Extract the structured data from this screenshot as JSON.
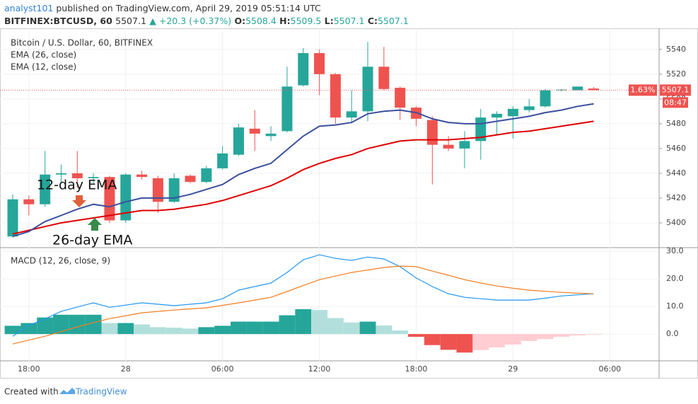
{
  "chart_data": {
    "type": "candlestick",
    "author": "analyst101",
    "published": "published on TradingView.com, April 29, 2019 05:51:14 UTC",
    "symbol": "BITFINEX:BTCUSD, 60",
    "quote": [
      "5507.1",
      "▲ +20.3 (+0.37%)"
    ],
    "ohlc": [
      {
        "label": "O:",
        "value": "5508.4"
      },
      {
        "label": "H:",
        "value": "5509.5"
      },
      {
        "label": "L:",
        "value": "5507.1"
      },
      {
        "label": "C:",
        "value": "5507.1"
      }
    ],
    "title": "Bitcoin / U.S. Dollar, 60, BITFINEX",
    "up_color": "#26a69a",
    "down_color": "#ef5350",
    "open": [
      5389,
      5419,
      5415,
      5439,
      5440,
      5436,
      5437,
      5402,
      5439,
      5436,
      5417,
      5438,
      5433,
      5444,
      5455,
      5476,
      5470,
      5474,
      5511,
      5537,
      5520,
      5485,
      5490,
      5526,
      5509,
      5493,
      5483,
      5463,
      5460,
      5466,
      5485,
      5486,
      5491,
      5494,
      5507,
      5507,
      5508.4
    ],
    "high": [
      5423,
      5422,
      5458,
      5447,
      5458,
      5440,
      5438,
      5440,
      5442,
      5438,
      5440,
      5439,
      5446,
      5462,
      5480,
      5491,
      5478,
      5526,
      5541,
      5540,
      5521,
      5507,
      5546,
      5542,
      5510,
      5494,
      5486,
      5470,
      5474,
      5492,
      5490,
      5494,
      5500,
      5508,
      5508,
      5510,
      5509.5
    ],
    "low": [
      5388,
      5406,
      5413,
      5432,
      5428,
      5432,
      5400,
      5400,
      5435,
      5408,
      5416,
      5432,
      5432,
      5443,
      5454,
      5458,
      5466,
      5473,
      5510,
      5503,
      5480,
      5481,
      5482,
      5507,
      5483,
      5478,
      5431,
      5458,
      5444,
      5451,
      5471,
      5468,
      5489,
      5493,
      5506,
      5507,
      5507.1
    ],
    "close": [
      5419,
      5415,
      5439,
      5440,
      5436,
      5437,
      5402,
      5439,
      5437,
      5417,
      5436,
      5433,
      5444,
      5456,
      5477,
      5472,
      5472,
      5510,
      5537,
      5520,
      5485,
      5490,
      5526,
      5508,
      5493,
      5484,
      5463,
      5460,
      5466,
      5485,
      5488,
      5492,
      5494,
      5507,
      5507.5,
      5510,
      5507.1
    ],
    "series": [
      {
        "name": "EMA (26, close)",
        "color": "#e00000",
        "values": [
          5391,
          5394,
          5397,
          5400,
          5402,
          5404,
          5406,
          5408,
          5410,
          5410,
          5411,
          5413,
          5415,
          5418,
          5422,
          5426,
          5430,
          5436,
          5443,
          5448,
          5452,
          5455,
          5460,
          5463,
          5466,
          5467,
          5467,
          5467,
          5468,
          5469,
          5471,
          5473,
          5474,
          5476,
          5478,
          5480,
          5482
        ]
      },
      {
        "name": "EMA (12, close)",
        "color": "#3b4f9e",
        "values": [
          5389,
          5393,
          5401,
          5406,
          5411,
          5415,
          5413,
          5417,
          5420,
          5420,
          5420,
          5423,
          5427,
          5431,
          5439,
          5444,
          5448,
          5459,
          5470,
          5478,
          5479,
          5481,
          5488,
          5490,
          5491,
          5489,
          5484,
          5481,
          5480,
          5480,
          5482,
          5484,
          5486,
          5489,
          5491,
          5494,
          5496
        ]
      }
    ],
    "ylim": [
      5380,
      5557
    ],
    "yticks": [
      5400,
      5420,
      5440,
      5460,
      5480,
      5500,
      5520,
      5540
    ],
    "xticks": [
      {
        "value": 1,
        "label": "18:00"
      },
      {
        "value": 7,
        "label": "28"
      },
      {
        "value": 13,
        "label": "06:00"
      },
      {
        "value": 19,
        "label": "12:00"
      },
      {
        "value": 25,
        "label": "18:00"
      },
      {
        "value": 31,
        "label": "29"
      },
      {
        "value": 37,
        "label": "06:00"
      }
    ],
    "price_tags": [
      "1.63%",
      "08:47"
    ],
    "annotations": [
      "12-day EMA",
      "26-day EMA"
    ],
    "grid": true,
    "macd": {
      "title": "MACD (12, 26, close, 9)",
      "series": [
        {
          "color": "#2196f3",
          "values": [
            -0.8,
            3.1,
            5.5,
            8.2,
            9.8,
            11.3,
            9.7,
            10.5,
            11.3,
            10.8,
            10.3,
            10.8,
            11.3,
            12.8,
            15.9,
            17.2,
            18.5,
            22.3,
            26.9,
            28.7,
            27.4,
            26.7,
            27.9,
            27.2,
            24.4,
            20.3,
            17.2,
            14.6,
            13.3,
            12.8,
            12.3,
            12.3,
            12.3,
            13.0,
            13.8,
            14.2,
            14.6
          ]
        },
        {
          "color": "#f57c20",
          "values": [
            -3.6,
            -2.2,
            -0.8,
            0.9,
            2.6,
            4.1,
            5.6,
            6.6,
            7.7,
            8.2,
            8.7,
            9.1,
            9.5,
            10.4,
            11.3,
            12.3,
            13.3,
            15.4,
            17.6,
            19.7,
            21.0,
            22.3,
            23.2,
            24.1,
            24.6,
            24.4,
            22.8,
            21.3,
            19.7,
            18.5,
            17.4,
            16.6,
            15.9,
            15.5,
            15.1,
            14.8,
            14.6
          ]
        }
      ],
      "histogram": [
        3,
        4,
        6,
        7,
        7,
        7,
        4,
        4,
        3.5,
        2.5,
        2.3,
        2,
        2.5,
        3,
        4.5,
        4.5,
        4.5,
        6.8,
        9,
        8.7,
        5.8,
        4.2,
        4.5,
        3.1,
        1.3,
        -1,
        -4,
        -5.7,
        -6.7,
        -5.8,
        -4.8,
        -3.8,
        -2.5,
        -1.8,
        -1,
        -0.5,
        -0.2
      ],
      "histogram_colors": [
        "#26a69a",
        "#b2dfdb",
        "#ef5350",
        "#ffcdd2"
      ],
      "ylim": [
        -9.7,
        31.3
      ],
      "yticks": [
        {
          "value": 0,
          "label": "0.0"
        },
        {
          "value": 10,
          "label": "10.0"
        },
        {
          "value": 20,
          "label": "20.0"
        },
        {
          "value": 30,
          "label": "30.0"
        }
      ]
    },
    "footer": [
      "Created with",
      "TradingView"
    ]
  }
}
